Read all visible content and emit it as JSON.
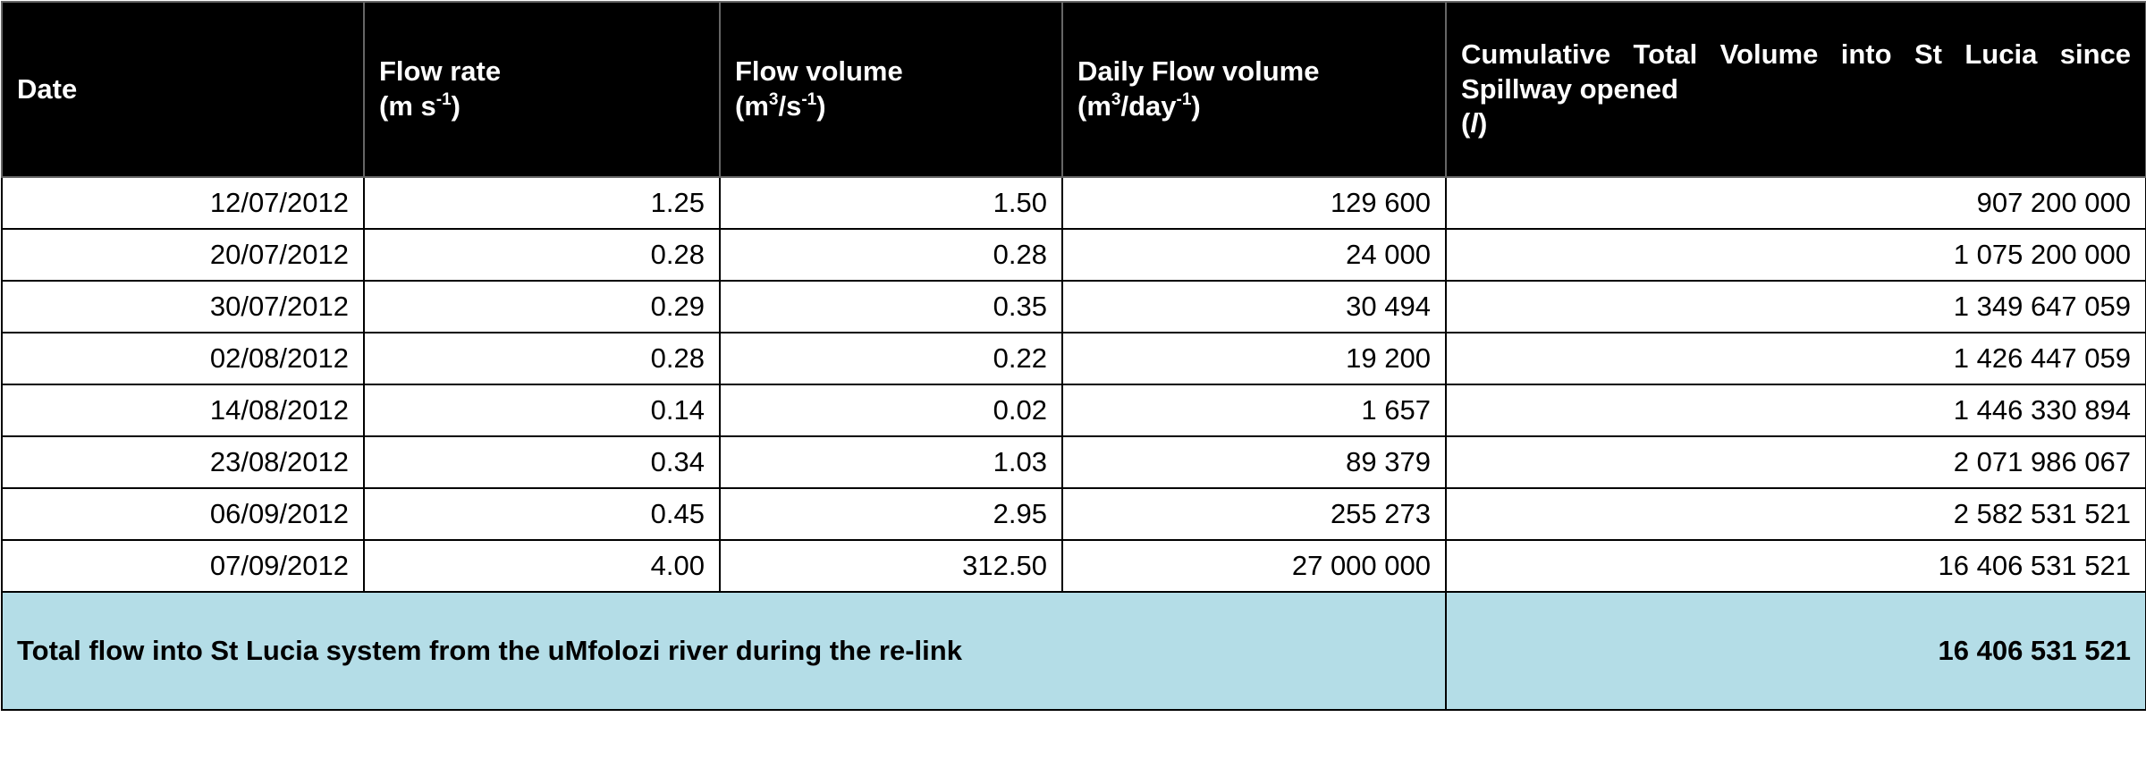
{
  "table": {
    "header": [
      [
        "Date"
      ],
      [
        "Flow rate",
        "(m s",
        "-1",
        ")"
      ],
      [
        "Flow volume",
        "(m",
        "3",
        "/s",
        "-1",
        ")"
      ],
      [
        "Daily Flow volume",
        "(m",
        "3",
        "/day",
        "-1",
        ")"
      ],
      [
        "Cumulative Total Volume into St Lucia since Spillway opened",
        "(",
        "l",
        ")"
      ]
    ],
    "rows": [
      [
        "12/07/2012",
        "1.25",
        "1.50",
        "129 600",
        "907 200 000"
      ],
      [
        "20/07/2012",
        "0.28",
        "0.28",
        "24 000",
        "1 075 200 000"
      ],
      [
        "30/07/2012",
        "0.29",
        "0.35",
        "30 494",
        "1 349 647 059"
      ],
      [
        "02/08/2012",
        "0.28",
        "0.22",
        "19 200",
        "1 426 447 059"
      ],
      [
        "14/08/2012",
        "0.14",
        "0.02",
        "1 657",
        "1 446 330 894"
      ],
      [
        "23/08/2012",
        "0.34",
        "1.03",
        "89 379",
        "2 071 986 067"
      ],
      [
        "06/09/2012",
        "0.45",
        "2.95",
        "255 273",
        "2 582 531 521"
      ],
      [
        "07/09/2012",
        "4.00",
        "312.50",
        "27 000 000",
        "16 406 531 521"
      ]
    ],
    "footer": {
      "label": "Total flow into St Lucia system from the uMfolozi river during the re-link",
      "total": "16 406 531 521"
    }
  }
}
